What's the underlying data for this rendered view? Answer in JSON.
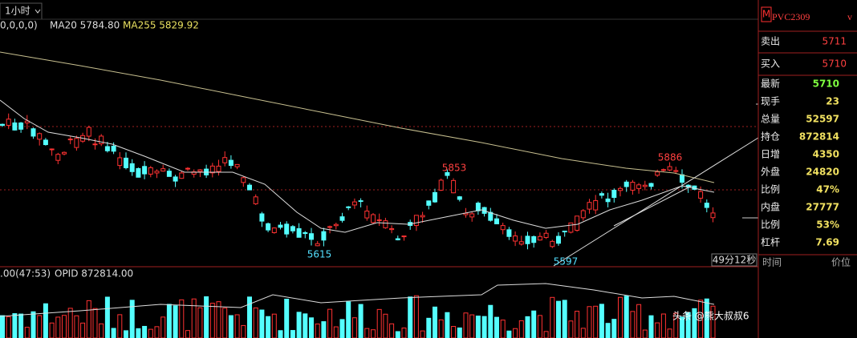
{
  "toolbar": {
    "period": "1小时"
  },
  "indicators": {
    "prefix": "0,0,0,0)",
    "ma20": "MA20 5784.80",
    "ma255": "MA255 5829.92"
  },
  "price_marks": {
    "high_1": "5853",
    "high_2": "5886",
    "low_1": "5615",
    "low_2": "5597"
  },
  "countdown": "49分12秒",
  "volume_header": {
    "left": ".00(47:53)",
    "opid": "OPID 872814.00"
  },
  "quote": {
    "symbol": "PVC2309",
    "suffix": "v",
    "badge": "M",
    "sell": {
      "label": "卖出",
      "value": "5711"
    },
    "buy": {
      "label": "买入",
      "value": "5710"
    },
    "rows": [
      {
        "label": "最新",
        "value": "5710"
      },
      {
        "label": "现手",
        "value": "23"
      },
      {
        "label": "总量",
        "value": "52597"
      },
      {
        "label": "持仓",
        "value": "872814"
      },
      {
        "label": "日增",
        "value": "4350"
      },
      {
        "label": "外盘",
        "value": "24820"
      },
      {
        "label": "比例",
        "value": "47%"
      },
      {
        "label": "内盘",
        "value": "27777"
      },
      {
        "label": "比例",
        "value": "53%"
      },
      {
        "label": "杠杆",
        "value": "7.69"
      }
    ],
    "columns": {
      "time": "时间",
      "price": "价位"
    }
  },
  "watermark": "头条 @熊大叔叔6"
}
